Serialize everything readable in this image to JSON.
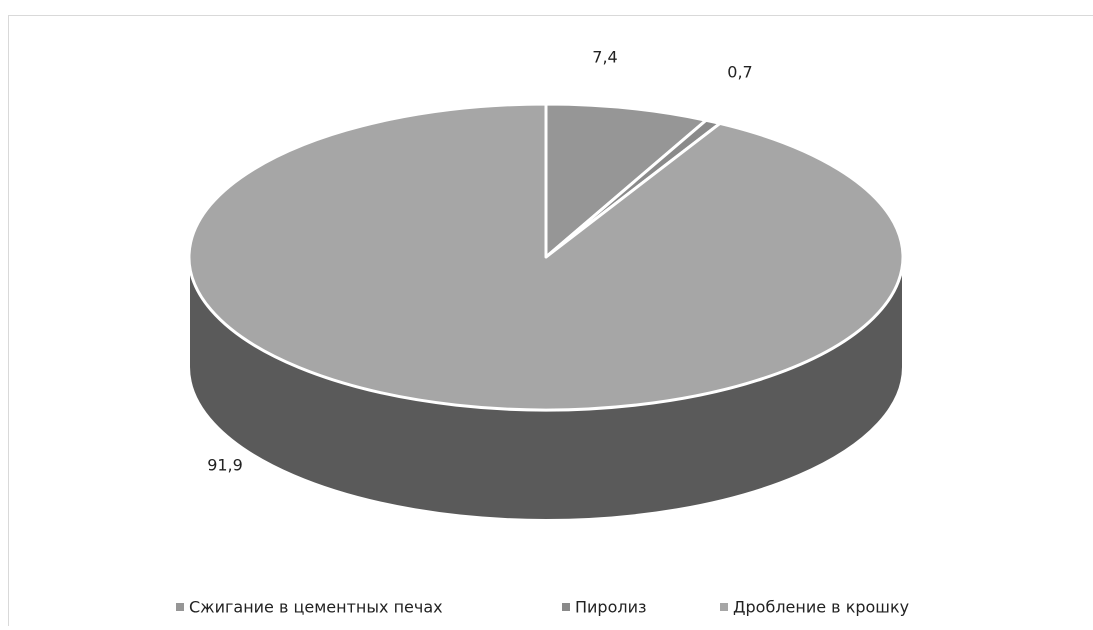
{
  "chart_data": {
    "type": "pie",
    "categories": [
      "Сжигание в цементных печах",
      "Пиролиз",
      "Дробление в крошку"
    ],
    "values": [
      7.4,
      0.7,
      91.9
    ],
    "value_labels": [
      "7,4",
      "0,7",
      "91,9"
    ],
    "colors": [
      "#969696",
      "#8a8a8a",
      "#a6a6a6"
    ],
    "legend": "bottom"
  }
}
